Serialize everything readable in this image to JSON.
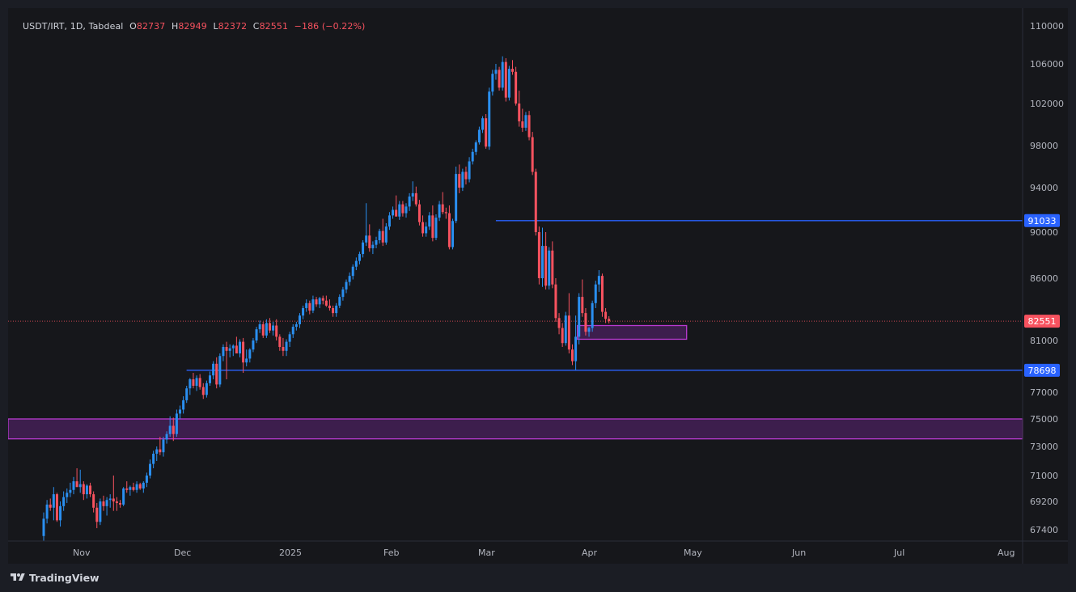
{
  "legend": {
    "symbol": "USDT/IRT, 1D, Tabdeal",
    "open_label": "O",
    "open": "82737",
    "high_label": "H",
    "high": "82949",
    "low_label": "L",
    "low": "82372",
    "close_label": "C",
    "close": "82551",
    "change": "−186 (−0.22%)"
  },
  "brand": {
    "name": "TradingView"
  },
  "colors": {
    "up": "#2a8ff0",
    "down": "#f7525f",
    "level_line": "#2962ff",
    "zone_fill": "#3d1e4d",
    "zone_border": "#b93ad1",
    "price_line": "#f7525f"
  },
  "chart_data": {
    "type": "candlestick",
    "symbol": "USDT/IRT",
    "interval": "1D",
    "x_axis_ticks": [
      "Nov",
      "Dec",
      "2025",
      "Feb",
      "Mar",
      "Apr",
      "May",
      "Jun",
      "Jul",
      "Aug"
    ],
    "y_axis_ticks": [
      "110000",
      "106000",
      "102000",
      "98000",
      "94000",
      "90000",
      "86000",
      "81000",
      "77000",
      "75000",
      "73000",
      "71000",
      "69200",
      "67400"
    ],
    "price_labels": [
      {
        "value": "91033",
        "kind": "level"
      },
      {
        "value": "82551",
        "kind": "last"
      },
      {
        "value": "78698",
        "kind": "level"
      }
    ],
    "levels": [
      91033,
      78698
    ],
    "zones": [
      {
        "name": "support-zone-wide",
        "low": 73550,
        "high": 75000
      },
      {
        "name": "support-zone-small",
        "low": 81100,
        "high": 82200
      }
    ],
    "last_price": 82551,
    "ohlc": [
      [
        67000,
        68500,
        66700,
        68100
      ],
      [
        68100,
        69300,
        67800,
        69000
      ],
      [
        69000,
        69400,
        68600,
        68800
      ],
      [
        68800,
        70200,
        68000,
        69700
      ],
      [
        69700,
        69800,
        67900,
        68000
      ],
      [
        68000,
        69200,
        67600,
        68900
      ],
      [
        68900,
        69900,
        68600,
        69500
      ],
      [
        69500,
        70100,
        69100,
        69800
      ],
      [
        69800,
        70500,
        69500,
        70000
      ],
      [
        70000,
        70900,
        69700,
        70600
      ],
      [
        70600,
        71500,
        70200,
        70200
      ],
      [
        70200,
        71400,
        69800,
        70400
      ],
      [
        70400,
        70600,
        69300,
        69700
      ],
      [
        69700,
        70400,
        69400,
        70300
      ],
      [
        70300,
        70500,
        69500,
        69700
      ],
      [
        69700,
        69900,
        68500,
        68800
      ],
      [
        68800,
        69100,
        67500,
        67900
      ],
      [
        67900,
        69400,
        67700,
        69200
      ],
      [
        69200,
        69600,
        68600,
        68900
      ],
      [
        68900,
        69500,
        68300,
        69300
      ],
      [
        69300,
        69700,
        68800,
        69400
      ],
      [
        69400,
        71000,
        68600,
        69200
      ],
      [
        69200,
        69500,
        68600,
        69100
      ],
      [
        69100,
        69300,
        68800,
        69000
      ],
      [
        69000,
        70200,
        68900,
        70100
      ],
      [
        70100,
        70600,
        69800,
        70000
      ],
      [
        70000,
        70300,
        69600,
        70200
      ],
      [
        70200,
        70500,
        69900,
        70000
      ],
      [
        70000,
        70600,
        69800,
        70400
      ],
      [
        70400,
        70500,
        70000,
        70100
      ],
      [
        70100,
        70600,
        69800,
        70500
      ],
      [
        70500,
        71200,
        70200,
        71000
      ],
      [
        71000,
        72100,
        70800,
        71800
      ],
      [
        71800,
        72700,
        71500,
        72500
      ],
      [
        72500,
        73000,
        72000,
        72800
      ],
      [
        72800,
        73700,
        72400,
        72600
      ],
      [
        72600,
        73700,
        72300,
        73500
      ],
      [
        73500,
        74100,
        73200,
        73900
      ],
      [
        73900,
        75200,
        73700,
        74500
      ],
      [
        74500,
        75100,
        73400,
        73900
      ],
      [
        73900,
        75700,
        73700,
        75400
      ],
      [
        75400,
        76000,
        75000,
        75700
      ],
      [
        75700,
        76700,
        75400,
        76400
      ],
      [
        76400,
        77500,
        76200,
        77300
      ],
      [
        77300,
        78100,
        76800,
        78000
      ],
      [
        78000,
        78500,
        77300,
        77500
      ],
      [
        77500,
        78300,
        77100,
        78100
      ],
      [
        78100,
        78400,
        77200,
        77400
      ],
      [
        77400,
        77700,
        76500,
        76800
      ],
      [
        76800,
        77900,
        76600,
        77700
      ],
      [
        77700,
        78600,
        77500,
        78300
      ],
      [
        78300,
        79400,
        78000,
        79200
      ],
      [
        79200,
        79700,
        77300,
        77600
      ],
      [
        77600,
        80000,
        77400,
        79800
      ],
      [
        79800,
        80700,
        79400,
        80500
      ],
      [
        80500,
        80900,
        78000,
        80200
      ],
      [
        80200,
        80700,
        79700,
        80400
      ],
      [
        80400,
        80700,
        79800,
        80600
      ],
      [
        80600,
        81300,
        80200,
        80000
      ],
      [
        80000,
        81100,
        79700,
        80900
      ],
      [
        80900,
        81200,
        78500,
        79300
      ],
      [
        79300,
        80300,
        79000,
        79600
      ],
      [
        79600,
        80400,
        79300,
        80300
      ],
      [
        80300,
        81200,
        80100,
        81000
      ],
      [
        81000,
        82100,
        80800,
        81900
      ],
      [
        81900,
        82600,
        81600,
        82300
      ],
      [
        82300,
        82500,
        81200,
        81400
      ],
      [
        81400,
        82700,
        81200,
        82400
      ],
      [
        82400,
        82800,
        81600,
        81800
      ],
      [
        81800,
        82500,
        81400,
        82200
      ],
      [
        82200,
        82700,
        81000,
        81300
      ],
      [
        81300,
        81500,
        80200,
        80500
      ],
      [
        80500,
        81200,
        79800,
        80200
      ],
      [
        80200,
        81100,
        79800,
        80900
      ],
      [
        80900,
        81700,
        80500,
        81500
      ],
      [
        81500,
        82300,
        81200,
        82100
      ],
      [
        82100,
        82500,
        81800,
        82300
      ],
      [
        82300,
        83200,
        82000,
        83000
      ],
      [
        83000,
        83800,
        82700,
        83600
      ],
      [
        83600,
        84300,
        83300,
        84000
      ],
      [
        84000,
        84200,
        83100,
        83400
      ],
      [
        83400,
        84600,
        83200,
        84300
      ],
      [
        84300,
        84500,
        83700,
        83900
      ],
      [
        83900,
        84500,
        83600,
        84400
      ],
      [
        84400,
        84600,
        83900,
        84200
      ],
      [
        84200,
        84600,
        83700,
        83800
      ],
      [
        83800,
        84300,
        83400,
        83600
      ],
      [
        83600,
        83800,
        82900,
        83200
      ],
      [
        83200,
        84000,
        82900,
        83800
      ],
      [
        83800,
        84700,
        83600,
        84500
      ],
      [
        84500,
        85300,
        84200,
        85100
      ],
      [
        85100,
        85900,
        84800,
        85700
      ],
      [
        85700,
        86500,
        85400,
        86200
      ],
      [
        86200,
        87200,
        85900,
        87000
      ],
      [
        87000,
        87800,
        86700,
        87500
      ],
      [
        87500,
        88300,
        87200,
        88100
      ],
      [
        88100,
        89300,
        87800,
        89100
      ],
      [
        89100,
        92600,
        88800,
        89700
      ],
      [
        89700,
        90700,
        88300,
        88600
      ],
      [
        88600,
        89200,
        88100,
        88900
      ],
      [
        88900,
        89600,
        88600,
        89300
      ],
      [
        89300,
        90300,
        89000,
        90100
      ],
      [
        90100,
        91200,
        88800,
        89100
      ],
      [
        89100,
        90800,
        88900,
        90500
      ],
      [
        90500,
        91800,
        90200,
        91500
      ],
      [
        91500,
        92300,
        91200,
        92000
      ],
      [
        92000,
        93300,
        91700,
        91400
      ],
      [
        91400,
        92800,
        91100,
        92500
      ],
      [
        92500,
        92800,
        91400,
        91700
      ],
      [
        91700,
        92600,
        91300,
        92300
      ],
      [
        92300,
        93500,
        91900,
        93200
      ],
      [
        93200,
        94600,
        92800,
        93500
      ],
      [
        93500,
        94100,
        92300,
        92500
      ],
      [
        92500,
        92900,
        90600,
        90900
      ],
      [
        90900,
        91500,
        89600,
        89900
      ],
      [
        89900,
        90900,
        89600,
        90500
      ],
      [
        90500,
        91800,
        90200,
        91500
      ],
      [
        91500,
        92400,
        89200,
        89500
      ],
      [
        89500,
        91600,
        89300,
        91300
      ],
      [
        91300,
        92800,
        91000,
        92500
      ],
      [
        92500,
        93600,
        91600,
        91800
      ],
      [
        91800,
        92200,
        91200,
        91700
      ],
      [
        91700,
        92400,
        88500,
        88700
      ],
      [
        88700,
        91200,
        88500,
        91000
      ],
      [
        91000,
        96000,
        90800,
        95300
      ],
      [
        95300,
        96200,
        93500,
        94000
      ],
      [
        94000,
        95800,
        93700,
        95500
      ],
      [
        95500,
        96000,
        94300,
        94800
      ],
      [
        94800,
        96900,
        94500,
        96500
      ],
      [
        96500,
        97700,
        96200,
        97400
      ],
      [
        97400,
        98500,
        97100,
        98300
      ],
      [
        98300,
        99800,
        98100,
        99500
      ],
      [
        99500,
        100800,
        99200,
        100600
      ],
      [
        100600,
        101000,
        97700,
        97900
      ],
      [
        97900,
        103600,
        97600,
        103200
      ],
      [
        103200,
        105400,
        102800,
        105000
      ],
      [
        105000,
        106000,
        104400,
        105400
      ],
      [
        105400,
        105700,
        103300,
        103600
      ],
      [
        103600,
        106800,
        103300,
        106200
      ],
      [
        106200,
        106600,
        102200,
        102600
      ],
      [
        102600,
        105800,
        102300,
        105500
      ],
      [
        105500,
        106400,
        104900,
        105200
      ],
      [
        105200,
        105700,
        101800,
        102000
      ],
      [
        102000,
        103300,
        99800,
        100300
      ],
      [
        100300,
        101500,
        99300,
        99700
      ],
      [
        99700,
        101200,
        99400,
        100900
      ],
      [
        100900,
        101300,
        98500,
        98800
      ],
      [
        98800,
        99300,
        95200,
        95500
      ],
      [
        95500,
        95800,
        89700,
        90000
      ],
      [
        90000,
        90500,
        85500,
        86000
      ],
      [
        86000,
        90400,
        85300,
        88800
      ],
      [
        88800,
        90000,
        85100,
        85400
      ],
      [
        85400,
        88700,
        85100,
        88400
      ],
      [
        88400,
        89200,
        85200,
        85500
      ],
      [
        85500,
        86000,
        82500,
        82800
      ],
      [
        82800,
        83200,
        81500,
        82000
      ],
      [
        82000,
        82400,
        80500,
        80800
      ],
      [
        80800,
        83300,
        80600,
        83000
      ],
      [
        83000,
        84800,
        80000,
        80300
      ],
      [
        80300,
        80700,
        79100,
        79400
      ],
      [
        79400,
        83000,
        78700,
        81300
      ],
      [
        81300,
        84800,
        80700,
        84500
      ],
      [
        84500,
        85900,
        82900,
        83200
      ],
      [
        83200,
        83600,
        81400,
        81700
      ],
      [
        81700,
        82100,
        81300,
        82000
      ],
      [
        82000,
        84200,
        81700,
        84000
      ],
      [
        84000,
        85800,
        83600,
        85500
      ],
      [
        85500,
        86700,
        84900,
        86200
      ],
      [
        86200,
        86400,
        82900,
        83300
      ],
      [
        83300,
        83600,
        82400,
        82737
      ],
      [
        82737,
        82949,
        82372,
        82551
      ]
    ]
  }
}
